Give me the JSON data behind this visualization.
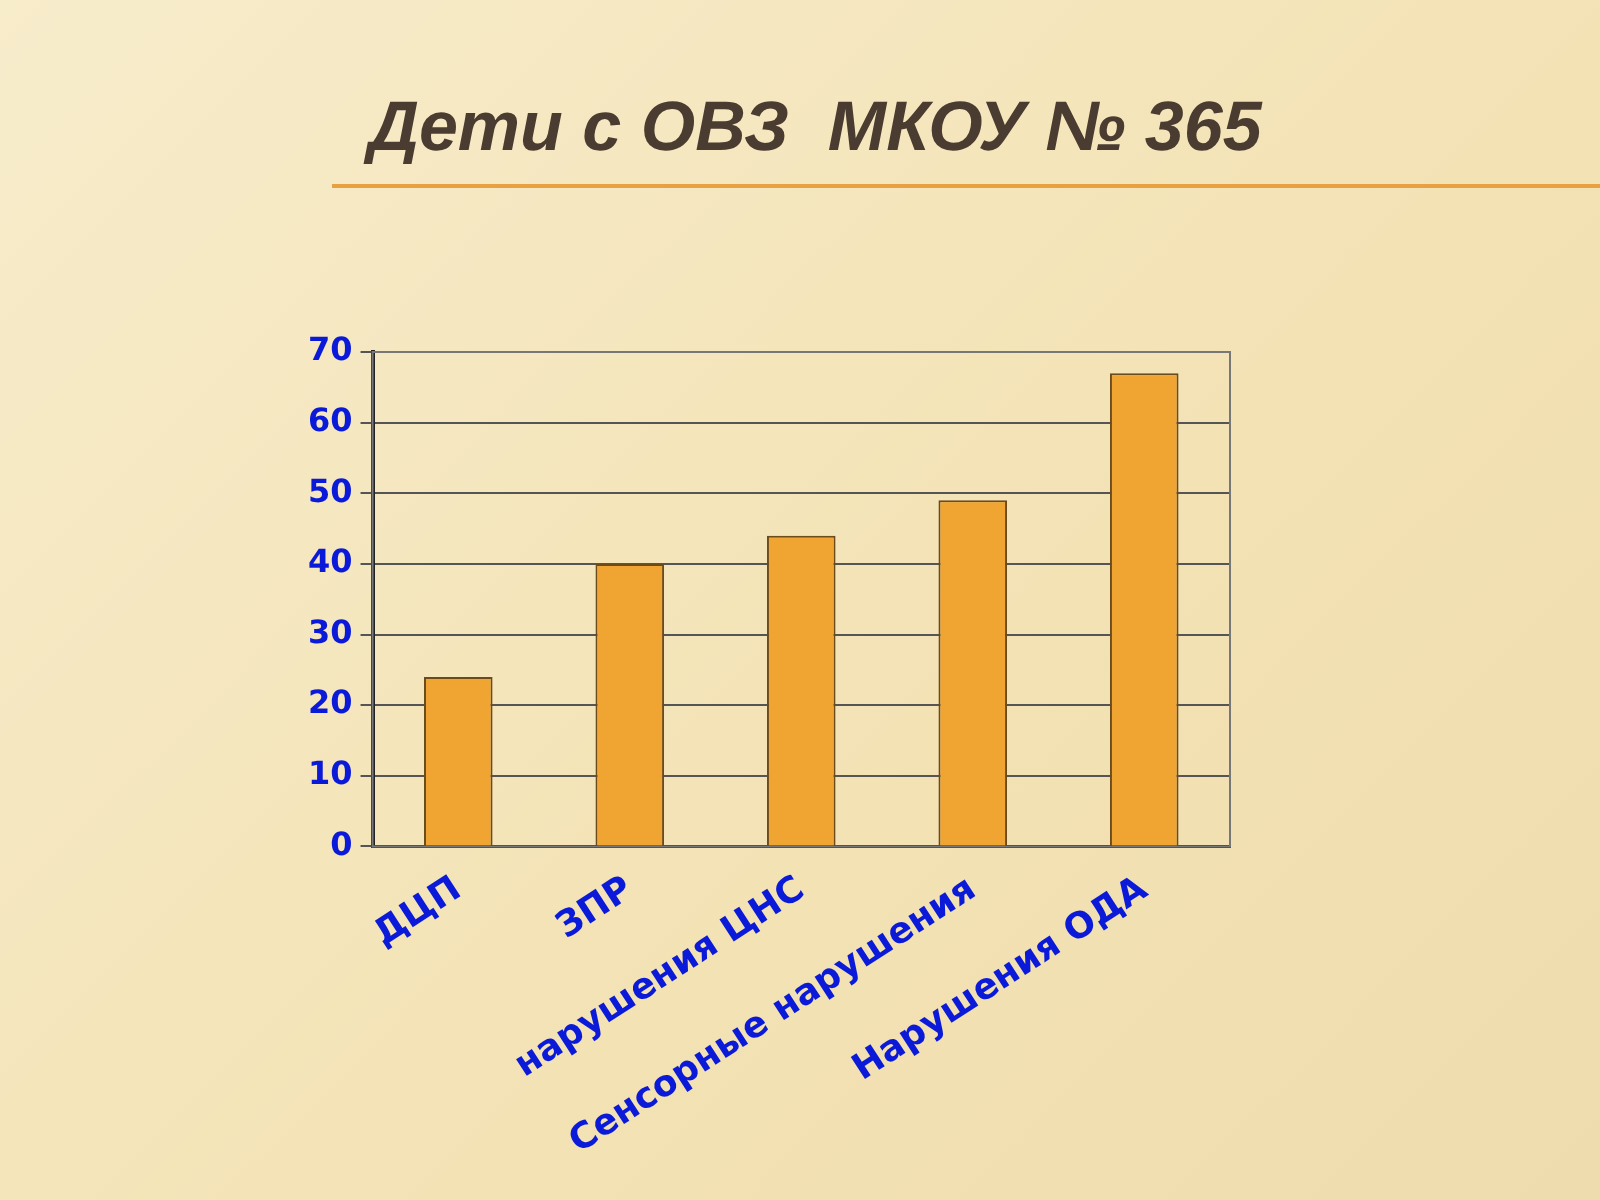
{
  "chart_data": {
    "type": "bar",
    "title": "Дети с ОВЗ  МКОУ № 365",
    "categories": [
      "ДЦП",
      "ЗПР",
      "нарушения ЦНС",
      "Сенсорные нарушения",
      "Нарушения ОДА"
    ],
    "values": [
      24,
      40,
      44,
      49,
      67
    ],
    "color": "#f0a431",
    "ylim": [
      0,
      70
    ],
    "yticks": [
      0,
      10,
      20,
      30,
      40,
      50,
      60,
      70
    ],
    "grid": "y"
  }
}
